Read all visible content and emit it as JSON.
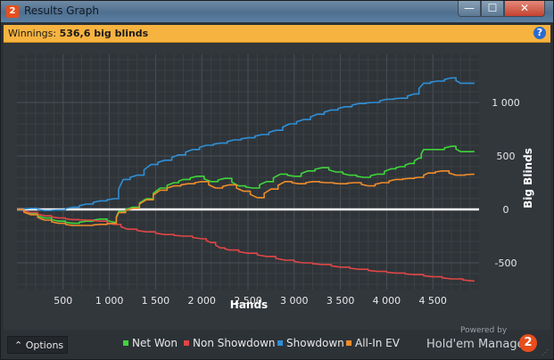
{
  "window": {
    "title": "Results Graph",
    "app_icon": "2",
    "controls": {
      "minimize": "—",
      "maximize": "☐",
      "close": "✕"
    }
  },
  "winnings": {
    "label": "Winnings:",
    "value": "536,6 big blinds"
  },
  "help_icon": "?",
  "chart_data": {
    "type": "line",
    "xlabel": "Hands",
    "ylabel": "Big Blinds",
    "xlim": [
      0,
      5000
    ],
    "ylim": [
      -750,
      1450
    ],
    "xticks": [
      500,
      1000,
      1500,
      2000,
      2500,
      3000,
      3500,
      4000,
      4500
    ],
    "xtick_labels": [
      "500",
      "1 000",
      "1 500",
      "2 000",
      "2 500",
      "3 000",
      "3 500",
      "4 000",
      "4 500"
    ],
    "yticks": [
      -500,
      0,
      500,
      1000
    ],
    "ytick_labels": [
      "-500",
      "0",
      "500",
      "1 000"
    ],
    "grid": true,
    "legend_position": "bottom",
    "zero_line": true,
    "series": [
      {
        "name": "Net Won",
        "color": "#3fd53a",
        "x": [
          0,
          150,
          300,
          450,
          600,
          750,
          900,
          1050,
          1100,
          1250,
          1400,
          1550,
          1700,
          1800,
          1950,
          2100,
          2250,
          2400,
          2550,
          2700,
          2850,
          3000,
          3150,
          3300,
          3450,
          3600,
          3750,
          3900,
          4050,
          4150,
          4250,
          4350,
          4400,
          4550,
          4700,
          4800,
          4950
        ],
        "values": [
          0,
          -40,
          -80,
          -110,
          -130,
          -110,
          -90,
          -120,
          -20,
          20,
          100,
          200,
          250,
          280,
          310,
          260,
          290,
          220,
          200,
          260,
          330,
          310,
          360,
          390,
          350,
          320,
          300,
          330,
          380,
          400,
          430,
          480,
          560,
          560,
          590,
          540,
          540
        ]
      },
      {
        "name": "Non Showdown",
        "color": "#e04646",
        "x": [
          0,
          150,
          300,
          450,
          600,
          750,
          900,
          1050,
          1200,
          1400,
          1600,
          1800,
          2000,
          2100,
          2200,
          2300,
          2500,
          2700,
          2900,
          3100,
          3300,
          3500,
          3700,
          3900,
          4100,
          4300,
          4500,
          4700,
          4950
        ],
        "values": [
          0,
          -30,
          -60,
          -80,
          -95,
          -100,
          -110,
          -140,
          -185,
          -210,
          -235,
          -250,
          -275,
          -310,
          -360,
          -380,
          -410,
          -440,
          -475,
          -500,
          -515,
          -540,
          -560,
          -580,
          -595,
          -610,
          -630,
          -650,
          -670
        ]
      },
      {
        "name": "Showdown",
        "color": "#2f8fd7",
        "x": [
          0,
          150,
          300,
          450,
          600,
          750,
          900,
          1050,
          1150,
          1300,
          1450,
          1600,
          1750,
          1900,
          2050,
          2200,
          2350,
          2500,
          2650,
          2800,
          2950,
          3100,
          3250,
          3400,
          3550,
          3700,
          3850,
          4000,
          4150,
          4300,
          4400,
          4550,
          4700,
          4800,
          4950
        ],
        "values": [
          0,
          10,
          -10,
          -5,
          20,
          50,
          80,
          100,
          280,
          320,
          420,
          460,
          510,
          560,
          600,
          620,
          650,
          670,
          700,
          740,
          800,
          840,
          890,
          930,
          960,
          990,
          1000,
          1030,
          1040,
          1080,
          1180,
          1200,
          1230,
          1180,
          1180
        ]
      },
      {
        "name": "All-In EV",
        "color": "#f08c2a",
        "x": [
          0,
          150,
          300,
          450,
          600,
          750,
          900,
          1050,
          1100,
          1250,
          1400,
          1550,
          1700,
          1850,
          2000,
          2150,
          2300,
          2450,
          2600,
          2750,
          2900,
          3050,
          3200,
          3350,
          3500,
          3650,
          3800,
          3950,
          4100,
          4250,
          4350,
          4450,
          4600,
          4750,
          4950
        ],
        "values": [
          0,
          -50,
          -100,
          -130,
          -150,
          -150,
          -140,
          -130,
          -30,
          10,
          90,
          180,
          220,
          240,
          260,
          200,
          230,
          170,
          110,
          190,
          260,
          240,
          260,
          250,
          240,
          250,
          220,
          250,
          280,
          290,
          300,
          340,
          360,
          320,
          330
        ]
      }
    ]
  },
  "options_label": "Options",
  "options_icon": "⌃",
  "powered_by": "Powered by",
  "brand": "Hold'em Manager",
  "brand_logo": "2"
}
